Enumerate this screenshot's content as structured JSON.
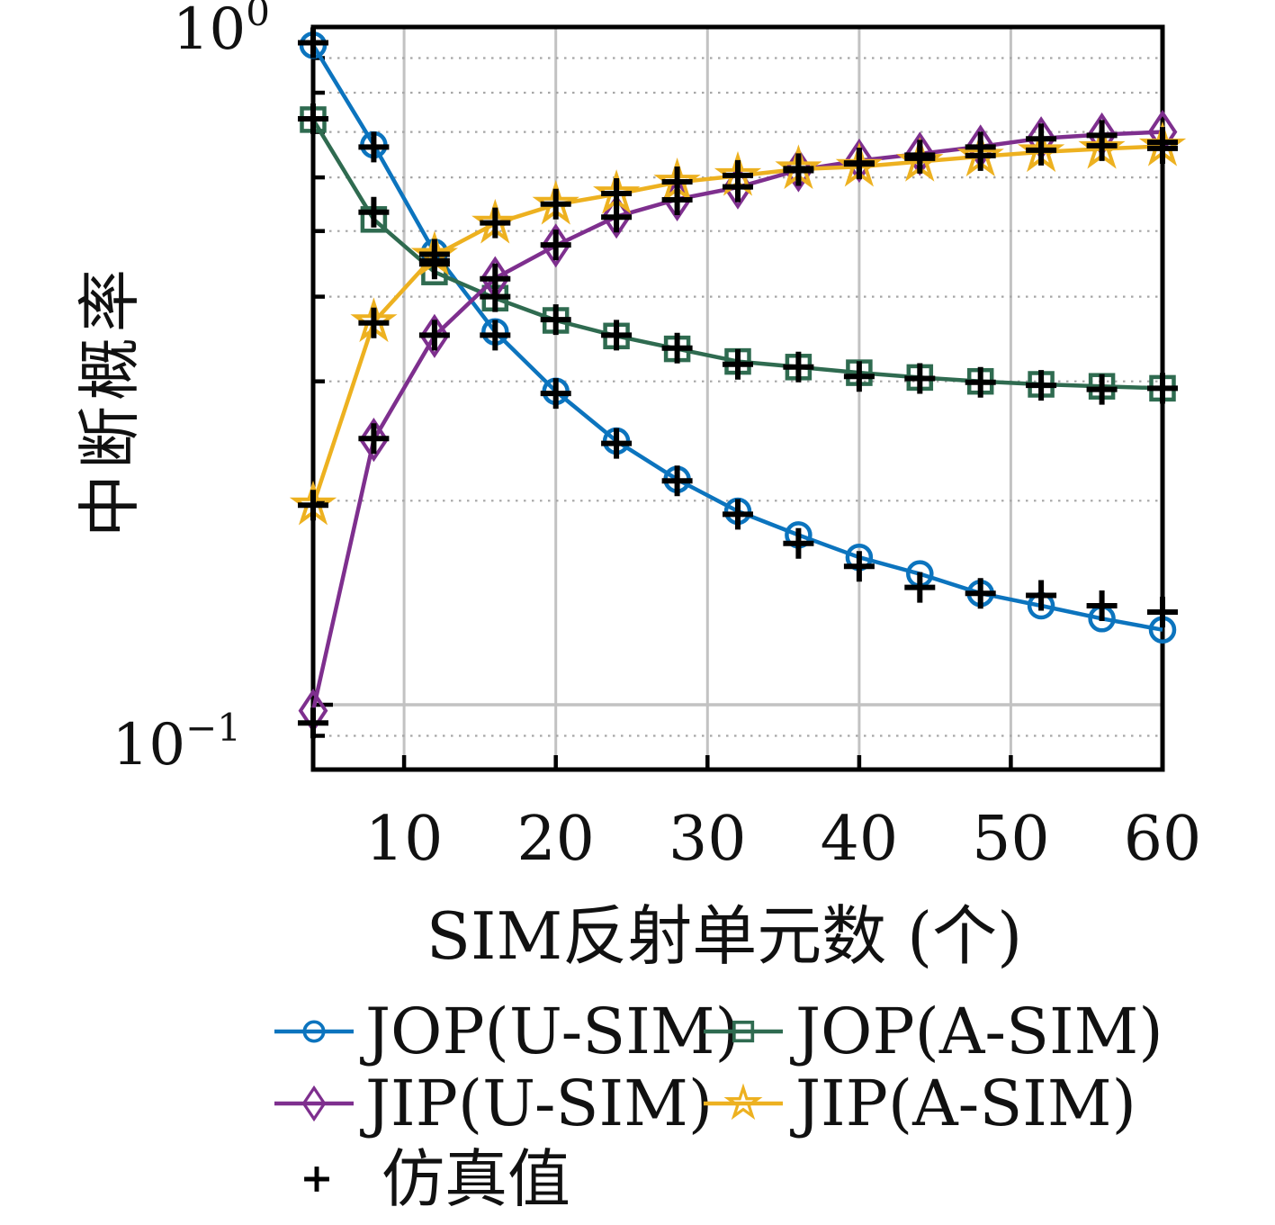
{
  "chart_data": {
    "type": "line",
    "xlabel": "SIM反射单元数 (个)",
    "ylabel": "中断概率",
    "x": [
      4,
      8,
      12,
      16,
      20,
      24,
      28,
      32,
      36,
      40,
      44,
      48,
      52,
      56,
      60
    ],
    "xlim": [
      4,
      60
    ],
    "ylim_log": [
      0.08,
      1.0
    ],
    "xticks": [
      10,
      20,
      30,
      40,
      50,
      60
    ],
    "yticks": [
      {
        "value": 1.0,
        "base": "10",
        "exp": "0"
      },
      {
        "value": 0.1,
        "base": "10",
        "exp": "−1"
      }
    ],
    "y_minor_gridlines": [
      0.9,
      0.8,
      0.7,
      0.6,
      0.5,
      0.4,
      0.3,
      0.2,
      0.09
    ],
    "grid": "on",
    "legend_position": "below-plot",
    "series": [
      {
        "name": "JOP(U-SIM)",
        "marker": "circle",
        "color": "#0C74BE",
        "values": [
          0.94,
          0.67,
          0.465,
          0.355,
          0.29,
          0.245,
          0.215,
          0.193,
          0.178,
          0.165,
          0.156,
          0.146,
          0.14,
          0.134,
          0.129
        ]
      },
      {
        "name": "JOP(A-SIM)",
        "marker": "square",
        "color": "#2F6B50",
        "values": [
          0.73,
          0.52,
          0.435,
          0.398,
          0.369,
          0.35,
          0.335,
          0.321,
          0.315,
          0.309,
          0.304,
          0.3,
          0.297,
          0.295,
          0.293
        ]
      },
      {
        "name": "JIP(U-SIM)",
        "marker": "diamond",
        "color": "#7E2F8E",
        "values": [
          0.098,
          0.246,
          0.35,
          0.426,
          0.476,
          0.525,
          0.557,
          0.58,
          0.615,
          0.635,
          0.65,
          0.666,
          0.685,
          0.694,
          0.7
        ]
      },
      {
        "name": "JIP(A-SIM)",
        "marker": "star",
        "color": "#EDB120",
        "values": [
          0.197,
          0.367,
          0.46,
          0.513,
          0.547,
          0.567,
          0.59,
          0.603,
          0.617,
          0.622,
          0.633,
          0.644,
          0.654,
          0.661,
          0.667
        ]
      }
    ],
    "simulation": {
      "label": "仿真值",
      "marker": "plus",
      "color": "#000000",
      "values": [
        [
          0.948,
          0.665,
          0.452,
          0.351,
          0.288,
          0.243,
          0.214,
          0.191,
          0.173,
          0.16,
          0.149,
          0.146,
          0.145,
          0.14,
          0.137
        ],
        [
          0.732,
          0.533,
          0.447,
          0.4,
          0.37,
          0.351,
          0.336,
          0.318,
          0.315,
          0.305,
          0.303,
          0.299,
          0.296,
          0.292,
          0.293
        ],
        [
          0.094,
          0.247,
          0.351,
          0.425,
          0.477,
          0.524,
          0.556,
          0.581,
          0.614,
          0.63,
          0.647,
          0.665,
          0.684,
          0.692,
          0.676
        ],
        [
          0.197,
          0.366,
          0.462,
          0.514,
          0.548,
          0.568,
          0.591,
          0.604,
          0.618,
          0.628,
          0.64,
          0.646,
          0.658,
          0.668,
          0.662
        ]
      ]
    },
    "legend": {
      "entries": [
        {
          "label": "JOP(U-SIM)",
          "marker": "circle",
          "color": "#0C74BE"
        },
        {
          "label": "JOP(A-SIM)",
          "marker": "square",
          "color": "#2F6B50"
        },
        {
          "label": "JIP(U-SIM)",
          "marker": "diamond",
          "color": "#7E2F8E"
        },
        {
          "label": "JIP(A-SIM)",
          "marker": "star",
          "color": "#EDB120"
        }
      ],
      "sim_entry": {
        "label": "仿真值",
        "marker": "plus",
        "color": "#000000"
      }
    },
    "style": {
      "frame_color": "#000000",
      "major_grid_color": "#C2C2C2",
      "minor_grid_color": "#A6A6A6",
      "text_color": "#111111"
    }
  }
}
